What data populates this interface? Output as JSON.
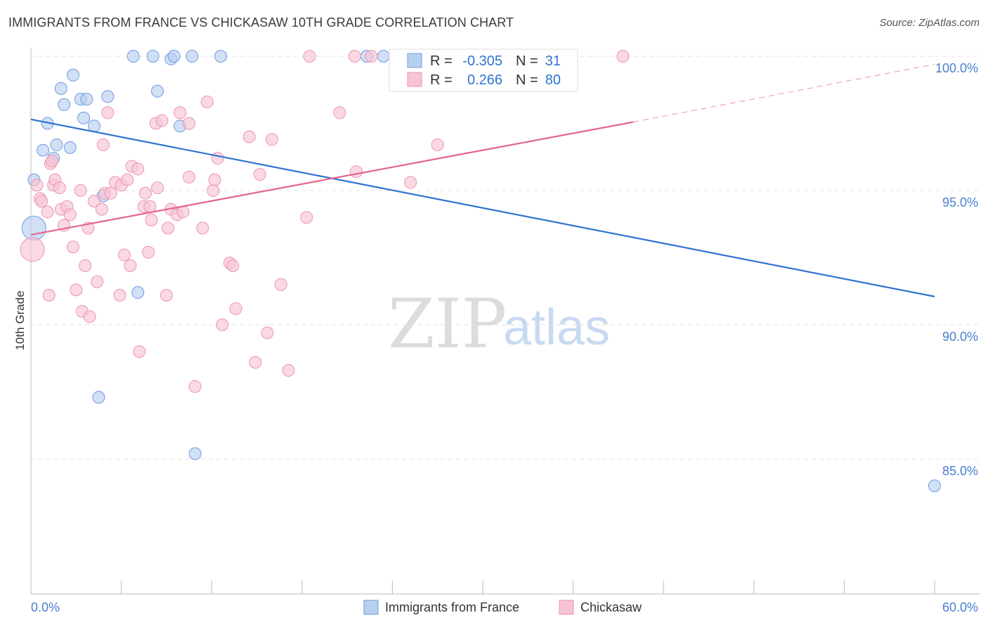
{
  "title": "IMMIGRANTS FROM FRANCE VS CHICKASAW 10TH GRADE CORRELATION CHART",
  "source": "Source: ZipAtlas.com",
  "watermark": {
    "zip": "ZIP",
    "atlas": "atlas"
  },
  "colors": {
    "blue_fill": "#b8d0f0",
    "blue_stroke": "#6e9be0",
    "blue_line": "#2f73d1",
    "pink_fill": "#f8c4d4",
    "pink_stroke": "#ec94b0",
    "pink_line": "#e3658e",
    "axis_text": "#4a7fd0",
    "grid": "#e2e2e2"
  },
  "legend": {
    "r_label": "R =",
    "n_label": "N =",
    "rows": [
      {
        "r": "-0.305",
        "n": "31"
      },
      {
        "r": "0.266",
        "n": "80"
      }
    ]
  },
  "chart_data": {
    "type": "scatter",
    "title": "IMMIGRANTS FROM FRANCE VS CHICKASAW 10TH GRADE CORRELATION CHART",
    "xlabel": "",
    "ylabel": "10th Grade",
    "xlim": [
      0,
      60
    ],
    "ylim": [
      80.5,
      100.6
    ],
    "x_tick_labels": [
      "0.0%",
      "60.0%"
    ],
    "y_ticks": [
      85,
      90,
      95,
      100
    ],
    "y_tick_labels": [
      "85.0%",
      "90.0%",
      "95.0%",
      "100.0%"
    ],
    "grid": true,
    "series": [
      {
        "name": "Immigrants from France",
        "color": "#b8d0f0",
        "r": -0.305,
        "n": 31,
        "trend": {
          "x": [
            0,
            60
          ],
          "y": [
            97.65,
            91.05
          ],
          "dashed_x": null
        },
        "points": [
          [
            0.2,
            93.6,
            "large"
          ],
          [
            0.2,
            95.4
          ],
          [
            0.8,
            96.5
          ],
          [
            1.1,
            97.5
          ],
          [
            1.5,
            96.2
          ],
          [
            1.7,
            96.7
          ],
          [
            2.0,
            98.8
          ],
          [
            2.2,
            98.2
          ],
          [
            2.6,
            96.6
          ],
          [
            2.8,
            99.3
          ],
          [
            3.3,
            98.4
          ],
          [
            3.5,
            97.7
          ],
          [
            3.7,
            98.4
          ],
          [
            4.2,
            97.4
          ],
          [
            4.5,
            87.3
          ],
          [
            4.8,
            94.8
          ],
          [
            5.1,
            98.5
          ],
          [
            6.8,
            100.0
          ],
          [
            7.1,
            91.2
          ],
          [
            8.1,
            100.0
          ],
          [
            8.4,
            98.7
          ],
          [
            9.3,
            99.9
          ],
          [
            9.5,
            100.0
          ],
          [
            9.9,
            97.4
          ],
          [
            10.7,
            100.0
          ],
          [
            10.9,
            85.2
          ],
          [
            12.6,
            100.0
          ],
          [
            22.3,
            100.0
          ],
          [
            23.4,
            100.0
          ],
          [
            32.0,
            100.0
          ],
          [
            60.0,
            84.0
          ]
        ]
      },
      {
        "name": "Chickasaw",
        "color": "#f8c4d4",
        "r": 0.266,
        "n": 80,
        "trend": {
          "x": [
            0,
            40
          ],
          "y": [
            93.35,
            97.55
          ],
          "dashed_x": [
            40,
            60
          ],
          "dashed_y": [
            97.55,
            99.7
          ]
        },
        "points": [
          [
            0.1,
            92.8,
            "large"
          ],
          [
            0.4,
            95.2
          ],
          [
            0.6,
            94.7
          ],
          [
            0.7,
            94.6
          ],
          [
            1.1,
            94.2
          ],
          [
            1.2,
            91.1
          ],
          [
            1.3,
            96.0
          ],
          [
            1.4,
            96.1
          ],
          [
            1.5,
            95.2
          ],
          [
            1.6,
            95.4
          ],
          [
            1.9,
            95.1
          ],
          [
            2.0,
            94.3
          ],
          [
            2.2,
            93.7
          ],
          [
            2.4,
            94.4
          ],
          [
            2.6,
            94.1
          ],
          [
            2.8,
            92.9
          ],
          [
            3.0,
            91.3
          ],
          [
            3.3,
            95.0
          ],
          [
            3.4,
            90.5
          ],
          [
            3.6,
            92.2
          ],
          [
            3.8,
            93.6
          ],
          [
            3.9,
            90.3
          ],
          [
            4.2,
            94.6
          ],
          [
            4.4,
            91.6
          ],
          [
            4.7,
            94.3
          ],
          [
            4.8,
            96.7
          ],
          [
            4.9,
            94.9
          ],
          [
            5.1,
            97.9
          ],
          [
            5.3,
            94.9
          ],
          [
            5.6,
            95.3
          ],
          [
            5.9,
            91.1
          ],
          [
            6.0,
            95.2
          ],
          [
            6.2,
            92.6
          ],
          [
            6.4,
            95.4
          ],
          [
            6.6,
            92.2
          ],
          [
            6.7,
            95.9
          ],
          [
            7.1,
            95.8
          ],
          [
            7.2,
            89.0
          ],
          [
            7.5,
            94.4
          ],
          [
            7.6,
            94.9
          ],
          [
            7.8,
            92.7
          ],
          [
            7.9,
            94.4
          ],
          [
            8.0,
            93.9
          ],
          [
            8.3,
            97.5
          ],
          [
            8.4,
            95.1
          ],
          [
            8.7,
            97.6
          ],
          [
            9.0,
            91.1
          ],
          [
            9.1,
            93.6
          ],
          [
            9.3,
            94.3
          ],
          [
            9.7,
            94.1
          ],
          [
            9.9,
            97.9
          ],
          [
            10.1,
            94.2
          ],
          [
            10.5,
            97.5
          ],
          [
            10.5,
            95.5
          ],
          [
            10.9,
            87.7
          ],
          [
            11.4,
            93.6
          ],
          [
            11.7,
            98.3
          ],
          [
            12.1,
            95.0
          ],
          [
            12.2,
            95.4
          ],
          [
            12.4,
            96.2
          ],
          [
            12.7,
            90.0
          ],
          [
            13.2,
            92.3
          ],
          [
            13.4,
            92.2
          ],
          [
            13.6,
            90.6
          ],
          [
            14.5,
            97.0
          ],
          [
            14.9,
            88.6
          ],
          [
            15.2,
            95.6
          ],
          [
            15.7,
            89.7
          ],
          [
            16.0,
            96.9
          ],
          [
            16.6,
            91.5
          ],
          [
            17.1,
            88.3
          ],
          [
            18.3,
            94.0
          ],
          [
            18.5,
            100.0
          ],
          [
            20.5,
            97.9
          ],
          [
            21.5,
            100.0
          ],
          [
            21.6,
            95.7
          ],
          [
            22.6,
            100.0
          ],
          [
            25.2,
            95.3
          ],
          [
            27.0,
            96.7
          ],
          [
            39.3,
            100.0
          ]
        ]
      }
    ]
  },
  "bottom_legend": [
    "Immigrants from France",
    "Chickasaw"
  ]
}
